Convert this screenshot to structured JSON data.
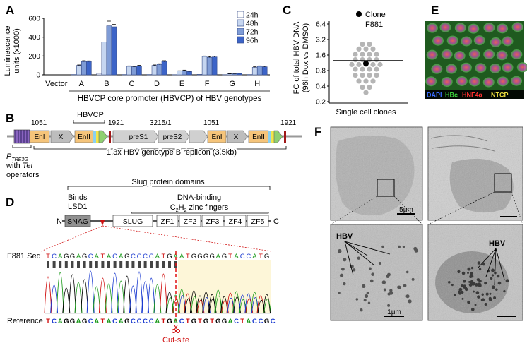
{
  "panels": {
    "A": "A",
    "B": "B",
    "C": "C",
    "D": "D",
    "E": "E",
    "F": "F"
  },
  "panelA": {
    "ylabel_line1": "Luminescence",
    "ylabel_line2": "units (x1000)",
    "xlabel": "HBVCP core promoter (HBVCP) of HBV genotypes",
    "yticks": [
      "0",
      "200",
      "400",
      "600"
    ]
  },
  "chart_data": [
    {
      "type": "bar",
      "title": "",
      "ylabel": "Luminescence units (x1000)",
      "xlabel": "HBVCP core promoter (HBVCP) of HBV genotypes",
      "ylim": [
        0,
        600
      ],
      "categories": [
        "Vector",
        "A",
        "B",
        "C",
        "D",
        "E",
        "F",
        "G",
        "H"
      ],
      "series": [
        {
          "name": "24h",
          "color": "#ffffff",
          "values": [
            0,
            3,
            15,
            3,
            3,
            2,
            5,
            2,
            3
          ],
          "errors": [
            0,
            0,
            0,
            0,
            0,
            0,
            0,
            0,
            0
          ]
        },
        {
          "name": "48h",
          "color": "#c6d6f0",
          "values": [
            0,
            100,
            350,
            90,
            100,
            40,
            195,
            10,
            80
          ],
          "errors": [
            0,
            5,
            0,
            5,
            5,
            3,
            5,
            2,
            5
          ]
        },
        {
          "name": "72h",
          "color": "#7f9cd6",
          "values": [
            0,
            140,
            520,
            85,
            110,
            45,
            185,
            12,
            90
          ],
          "errors": [
            0,
            10,
            50,
            5,
            8,
            5,
            8,
            2,
            5
          ]
        },
        {
          "name": "96h",
          "color": "#3c64c8",
          "values": [
            0,
            140,
            510,
            95,
            140,
            35,
            190,
            15,
            85
          ],
          "errors": [
            0,
            8,
            25,
            6,
            10,
            4,
            8,
            2,
            6
          ]
        }
      ]
    },
    {
      "type": "scatter",
      "title": "",
      "ylabel": "FC of total HBV DNA (96h Dox vs DMSO)",
      "xlabel": "Single cell clones",
      "yscale": "log2",
      "ylim": [
        0.2,
        6.4
      ],
      "yticks": [
        "6.4",
        "3.2",
        "1.6",
        "0.8",
        "0.4",
        "0.2"
      ],
      "mean": 1.25,
      "legend": "Clone F881",
      "points": [
        {
          "x": -0.5,
          "y": 2.6
        },
        {
          "x": 0.5,
          "y": 2.6
        },
        {
          "x": -1,
          "y": 2.1
        },
        {
          "x": 0,
          "y": 2.1
        },
        {
          "x": 1,
          "y": 2.1
        },
        {
          "x": -1.5,
          "y": 1.65
        },
        {
          "x": -0.5,
          "y": 1.65
        },
        {
          "x": 0.5,
          "y": 1.65
        },
        {
          "x": 1.5,
          "y": 1.65
        },
        {
          "x": -1.5,
          "y": 1.3
        },
        {
          "x": -0.5,
          "y": 1.3
        },
        {
          "x": 0.5,
          "y": 1.3
        },
        {
          "x": 1.5,
          "y": 1.3
        },
        {
          "x": -2,
          "y": 1.05
        },
        {
          "x": -1,
          "y": 1.05
        },
        {
          "x": 0,
          "y": 1.05
        },
        {
          "x": 1,
          "y": 1.05
        },
        {
          "x": 2,
          "y": 1.05
        },
        {
          "x": -1.5,
          "y": 0.85
        },
        {
          "x": -0.5,
          "y": 0.85
        },
        {
          "x": 0.5,
          "y": 0.85
        },
        {
          "x": 1.5,
          "y": 0.85
        },
        {
          "x": -1.5,
          "y": 0.65
        },
        {
          "x": -0.5,
          "y": 0.65
        },
        {
          "x": 0.5,
          "y": 0.65
        },
        {
          "x": 1.5,
          "y": 0.65
        },
        {
          "x": -1,
          "y": 0.5
        },
        {
          "x": 0,
          "y": 0.5
        },
        {
          "x": 1,
          "y": 0.5
        },
        {
          "x": -0.5,
          "y": 0.38
        },
        {
          "x": 0.5,
          "y": 0.38
        },
        {
          "x": 0,
          "y": 0.3
        },
        {
          "x": 0,
          "y": 1.1,
          "highlight": true
        }
      ]
    }
  ],
  "panelB": {
    "num1": "1051",
    "num2": "1921",
    "num3": "3215/1",
    "num4": "1051",
    "num5": "1921",
    "hbvcp": "HBVCP",
    "boxes": [
      "EnI",
      "X",
      "EnII",
      "preS1",
      "preS2",
      "EnI",
      "X",
      "EnII"
    ],
    "promoter_main": "P",
    "promoter_sub": "TRE3G",
    "tet_line": "with Tet operators",
    "tet_pre": "with ",
    "tet_italic": "Tet",
    "tet_post": "operators",
    "replicon": "1.3x HBV genotype B replicon (3.5kb)"
  },
  "panelD": {
    "slug_domains": "Slug protein domains",
    "binds": "Binds",
    "lsd1": "LSD1",
    "dna_binding": "DNA-binding",
    "zinc_pre": "C",
    "zinc_sub": "2",
    "zinc_mid": "H",
    "zinc_sub2": "2",
    "zinc_post": " zinc fingers",
    "n": "N",
    "c": "C",
    "domains": [
      "SNAG",
      "SLUG",
      "ZF1",
      "ZF2",
      "ZF3",
      "ZF4",
      "ZF5"
    ],
    "seq_label": "F881 Seq",
    "seq": "TCAGGAGCATACAGCCCCATGAATGGGGAGTACCATG",
    "ref_label": "Reference",
    "ref": "TCAGGAGCATACAGCCCCATGACTGTGTGGACTACCGC",
    "cutsite": "Cut-site"
  },
  "panelE": {
    "legend": [
      {
        "text": "DAPI",
        "color": "#3a6cff"
      },
      {
        "text": "HBc",
        "color": "#3cd23c"
      },
      {
        "text": "HNF4α",
        "color": "#ff3030"
      },
      {
        "text": "NTCP",
        "color": "#f0e040"
      }
    ]
  },
  "panelF": {
    "scale1": "5μm",
    "scale2": "1μm",
    "hbv": "HBV"
  }
}
